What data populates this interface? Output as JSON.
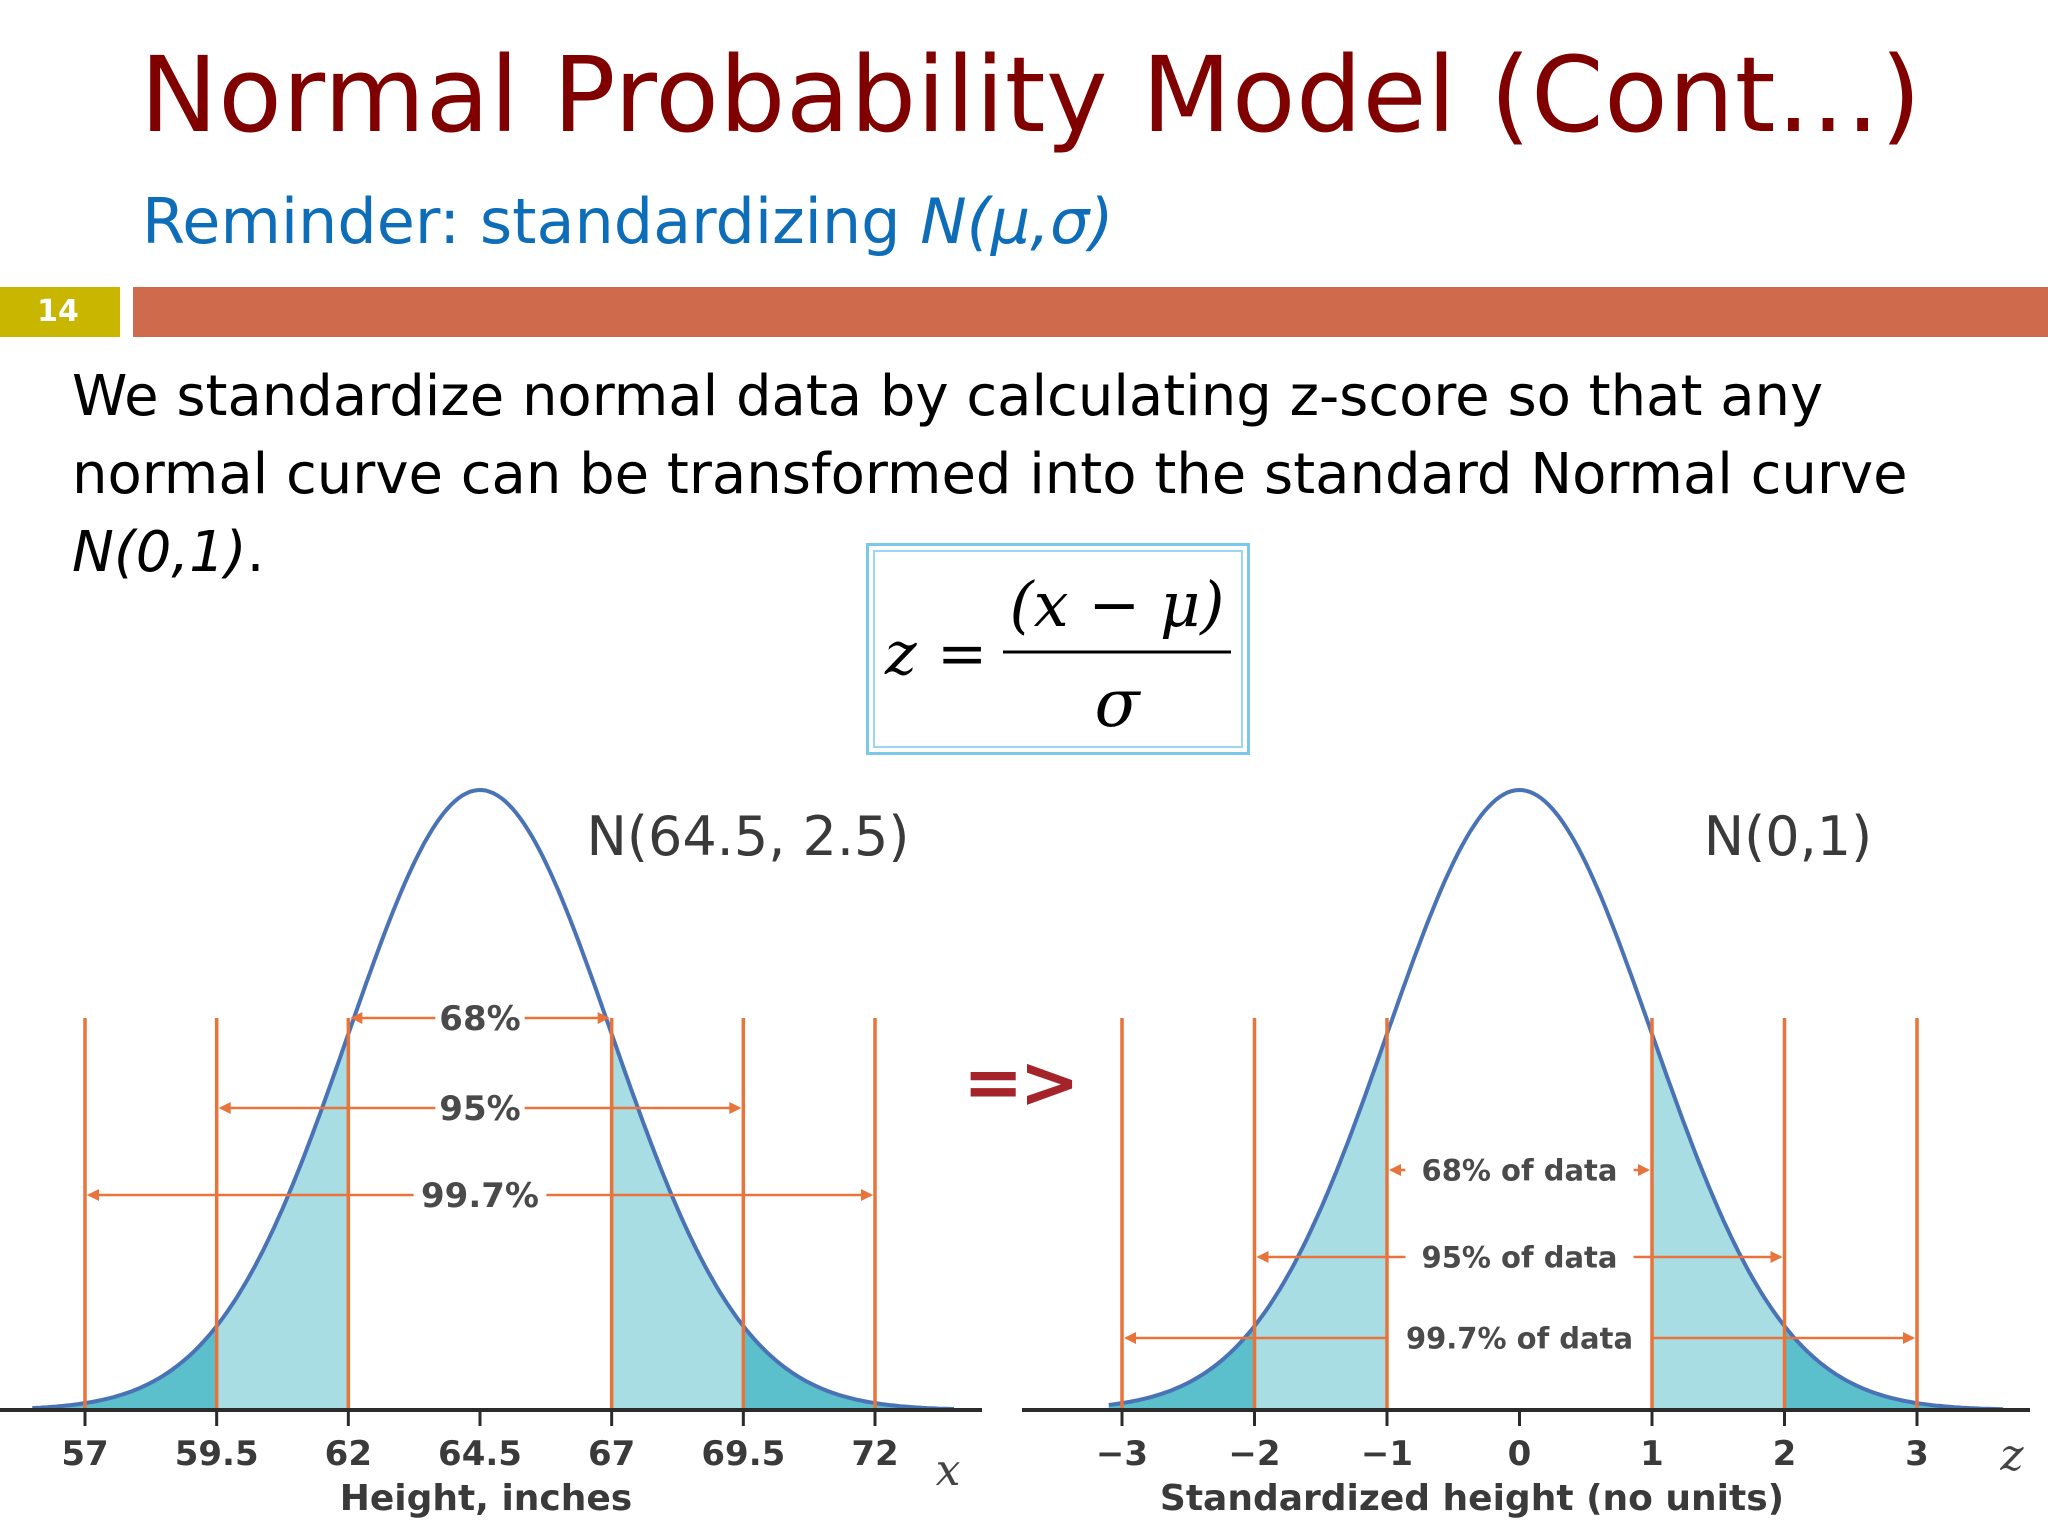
{
  "slide": {
    "title": "Normal Probability Model (Cont…)",
    "subtitle_prefix": "Reminder: standardizing ",
    "subtitle_math": "N(μ,σ)",
    "slide_number": "14",
    "body_prefix": "We standardize normal data by calculating z-score so that any normal curve can be transformed into the standard Normal curve ",
    "body_math": "N(0,1)",
    "body_suffix": ".",
    "formula": {
      "lhs": "z",
      "eq": "=",
      "numerator": "(x − μ)",
      "denominator": "σ"
    },
    "arrow": "=>"
  },
  "colors": {
    "title": "#800000",
    "subtitle": "#0e6db8",
    "slide_number_bg": "#c8b600",
    "rule_bar": "#cf6a4d",
    "curve": "#4a73b5",
    "fill": "#a9dde4",
    "fill_tail": "#5bc0cc",
    "guide": "#e8743b",
    "arrow": "#a4242a"
  },
  "chart_data": [
    {
      "type": "area",
      "title": "N(64.5, 2.5)",
      "mean": 64.5,
      "sd": 2.5,
      "xlabel": "Height, inches",
      "axis_symbol": "x",
      "ticks": [
        "57",
        "59.5",
        "62",
        "64.5",
        "67",
        "69.5",
        "72"
      ],
      "tick_values": [
        57,
        59.5,
        62,
        64.5,
        67,
        69.5,
        72
      ],
      "xlim": [
        56,
        73.5
      ],
      "intervals": [
        {
          "label": "68%",
          "from": 62,
          "to": 67
        },
        {
          "label": "95%",
          "from": 59.5,
          "to": 69.5
        },
        {
          "label": "99.7%",
          "from": 57,
          "to": 72
        }
      ]
    },
    {
      "type": "area",
      "title": "N(0,1)",
      "mean": 0,
      "sd": 1,
      "xlabel": "Standardized height (no units)",
      "axis_symbol": "z",
      "ticks": [
        "−3",
        "−2",
        "−1",
        "0",
        "1",
        "2",
        "3"
      ],
      "tick_values": [
        -3,
        -2,
        -1,
        0,
        1,
        2,
        3
      ],
      "xlim": [
        -3.1,
        3.65
      ],
      "intervals": [
        {
          "label": "68% of data",
          "from": -1,
          "to": 1
        },
        {
          "label": "95% of data",
          "from": -2,
          "to": 2
        },
        {
          "label": "99.7% of data",
          "from": -3,
          "to": 3
        }
      ]
    }
  ]
}
